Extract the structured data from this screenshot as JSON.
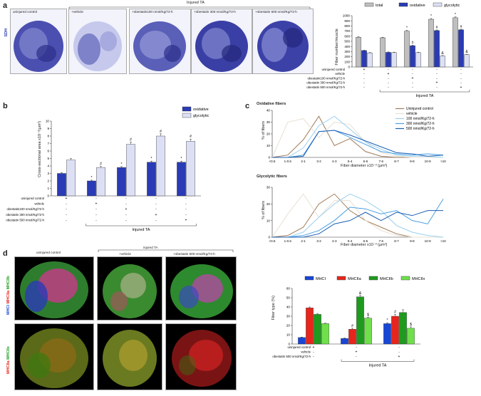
{
  "panel_a": {
    "letter": "a",
    "stain": "SDH",
    "group_label": "Injured TA",
    "images": [
      "uninjured control",
      "+vehicle",
      "+obestatin100 nmol/Kg/72-h",
      "+obestatin 300 nmol/Kg/72-h",
      "+obestatin 500 nmol/Kg/72-h"
    ]
  },
  "panel_b": {
    "letter": "b"
  },
  "panel_c": {
    "letter": "c"
  },
  "panel_d": {
    "letter": "d",
    "headers": [
      "uninjured control",
      "+vehicle",
      "+obestatin 500 nmol/Kg/72-h"
    ],
    "group_label": "injured TA",
    "row1_stains": [
      "MHCI",
      "MHCIIa",
      "MHCIIb"
    ],
    "row2_stains": [
      "MHCIIa",
      "MHCIIx"
    ]
  },
  "colors": {
    "blue": "#2a3bb5",
    "light": "#dde0f5",
    "grey": "#bfbfbf",
    "mhcI": "#1846d6",
    "mhcIIa": "#e8251c",
    "mhcIIb": "#1e9a1e",
    "mhcIIx": "#6fe04a"
  },
  "chart_data": [
    {
      "id": "a",
      "type": "bar",
      "ylabel": "Fiber number/muscle",
      "ylim": [
        0,
        1000
      ],
      "yticks": [
        "0",
        "100",
        "200",
        "300",
        "400",
        "500",
        "600",
        "700",
        "800",
        "900",
        "1000"
      ],
      "legend": [
        "total",
        "oxidative",
        "glycolytic"
      ],
      "series": [
        {
          "name": "total",
          "values": [
            580,
            570,
            700,
            930,
            960
          ],
          "errors": [
            10,
            10,
            15,
            15,
            15
          ]
        },
        {
          "name": "oxidative",
          "values": [
            320,
            285,
            415,
            710,
            725
          ],
          "errors": [
            8,
            8,
            10,
            12,
            12
          ]
        },
        {
          "name": "glycolytic",
          "values": [
            275,
            280,
            280,
            215,
            240
          ],
          "errors": [
            8,
            8,
            8,
            8,
            8
          ]
        }
      ],
      "marks": [
        [
          "",
          "",
          ""
        ],
        [
          "",
          "",
          ""
        ],
        [
          "*",
          "#",
          ""
        ],
        [
          "*",
          "#",
          "&"
        ],
        [
          "*",
          "#",
          "&"
        ]
      ],
      "condition_rows": [
        {
          "label": "uninjured control",
          "signs": [
            "+",
            "-",
            "-",
            "-",
            "-"
          ]
        },
        {
          "label": "vehicle",
          "signs": [
            "-",
            "+",
            "-",
            "-",
            "-"
          ]
        },
        {
          "label": "obestatin100 nmol/Kg/72-h",
          "signs": [
            "-",
            "-",
            "+",
            "-",
            "-"
          ]
        },
        {
          "label": "obestatin 300 nmol/Kg/72-h",
          "signs": [
            "-",
            "-",
            "-",
            "+",
            "-"
          ]
        },
        {
          "label": "obestatin 500 nmol/Kg/72-h",
          "signs": [
            "-",
            "-",
            "-",
            "-",
            "+"
          ]
        }
      ],
      "group_label": "Injured TA"
    },
    {
      "id": "b",
      "type": "bar",
      "ylabel": "Cross-sectional area x10⁻³(µm²)",
      "ylim": [
        0,
        10
      ],
      "yticks": [
        "0",
        "1",
        "2",
        "3",
        "4",
        "5",
        "6",
        "7",
        "8",
        "9",
        "10"
      ],
      "legend": [
        "oxidative",
        "glycolytic"
      ],
      "series": [
        {
          "name": "oxidative",
          "values": [
            3.0,
            2.0,
            3.8,
            4.5,
            4.5
          ],
          "errors": [
            0.12,
            0.1,
            0.12,
            0.15,
            0.15
          ]
        },
        {
          "name": "glycolytic",
          "values": [
            4.8,
            3.8,
            6.9,
            8.0,
            7.3
          ],
          "errors": [
            0.2,
            0.15,
            0.3,
            0.3,
            0.3
          ]
        }
      ],
      "marks": [
        [
          "",
          ""
        ],
        [
          "*",
          "#"
        ],
        [
          "*",
          "#"
        ],
        [
          "*",
          "#"
        ],
        [
          "*",
          "#"
        ]
      ],
      "condition_rows": [
        {
          "label": "uninjured control",
          "signs": [
            "+",
            "-",
            "-",
            "-",
            "-"
          ]
        },
        {
          "label": "vehicle",
          "signs": [
            "-",
            "+",
            "-",
            "-",
            "-"
          ]
        },
        {
          "label": "obestatin100 nmol/Kg/72-h",
          "signs": [
            "-",
            "-",
            "+",
            "-",
            "-"
          ]
        },
        {
          "label": "obestatin 300 nmol/Kg/72-h",
          "signs": [
            "-",
            "-",
            "-",
            "+",
            "-"
          ]
        },
        {
          "label": "obestatin 500 nmol/Kg/72-h",
          "signs": [
            "-",
            "-",
            "-",
            "-",
            "+"
          ]
        }
      ],
      "group_label": "Injured TA"
    },
    {
      "id": "c1",
      "type": "line",
      "title": "Oxidative fibers",
      "xlabel": "Fiber diameter x10⁻³ (µm²)",
      "ylabel": "% of fibers",
      "categories": [
        "<0.5",
        "1-0.5",
        "2-1",
        "3-2",
        "4-3",
        "5-4",
        "6-5",
        "7-6",
        "8-7",
        "9-8",
        "10-9",
        ">10"
      ],
      "ylim": [
        0,
        40
      ],
      "series": [
        {
          "name": "Uninjured control",
          "color": "#a07a55",
          "values": [
            0,
            2,
            15,
            35,
            10,
            16,
            5,
            1,
            0,
            0,
            0,
            0
          ]
        },
        {
          "name": "vehicle",
          "color": "#e8e0d2",
          "values": [
            0,
            30,
            33,
            17,
            30,
            28,
            13,
            4,
            1,
            0,
            0,
            0
          ]
        },
        {
          "name": "100 nmol/Kg/72-h",
          "color": "#9ad0ef",
          "values": [
            0,
            0,
            8,
            27,
            35,
            24,
            13,
            7,
            2,
            1,
            1,
            0
          ]
        },
        {
          "name": "300 nmol/Kg/72-h",
          "color": "#4a9fe0",
          "values": [
            0,
            0,
            2,
            22,
            23,
            17,
            11,
            5,
            3,
            2,
            3,
            2
          ]
        },
        {
          "name": "500 nmol/Kg/72-h",
          "color": "#1b5fb5",
          "values": [
            0,
            0,
            1,
            22,
            23,
            19,
            14,
            9,
            4,
            3,
            1,
            2
          ]
        }
      ]
    },
    {
      "id": "c2",
      "type": "line",
      "title": "Glycolytic fibers",
      "xlabel": "Fiber diameter x10⁻³ (µm²)",
      "ylabel": "% of fibers",
      "categories": [
        "<0.5",
        "1-0.5",
        "2-1",
        "3-2",
        "4-3",
        "5-4",
        "6-5",
        "7-6",
        "8-7",
        "9-8",
        "10-9",
        ">10"
      ],
      "ylim": [
        0,
        30
      ],
      "series": [
        {
          "name": "Uninjured control",
          "color": "#a07a55",
          "values": [
            0,
            1,
            6,
            20,
            26,
            16,
            10,
            6,
            2,
            0,
            0,
            0
          ]
        },
        {
          "name": "vehicle",
          "color": "#e8e0d2",
          "values": [
            0,
            14,
            26,
            12,
            22,
            22,
            10,
            4,
            1,
            0,
            0,
            0
          ]
        },
        {
          "name": "100 nmol/Kg/72-h",
          "color": "#9ad0ef",
          "values": [
            0,
            0,
            3,
            12,
            20,
            26,
            22,
            16,
            7,
            3,
            1,
            0
          ]
        },
        {
          "name": "300 nmol/Kg/72-h",
          "color": "#4a9fe0",
          "values": [
            0,
            0,
            1,
            4,
            10,
            18,
            17,
            14,
            16,
            10,
            8,
            23
          ]
        },
        {
          "name": "500 nmol/Kg/72-h",
          "color": "#1b5fb5",
          "values": [
            0,
            0,
            0,
            2,
            8,
            10,
            15,
            10,
            15,
            13,
            16,
            16
          ]
        }
      ]
    },
    {
      "id": "d",
      "type": "bar",
      "ylabel": "Fiber type (%)",
      "ylim": [
        0,
        60
      ],
      "yticks": [
        "0",
        "10",
        "20",
        "30",
        "40",
        "50",
        "60"
      ],
      "legend": [
        "MHCI",
        "MHCIIa",
        "MHCIIb",
        "MHCIIx"
      ],
      "series": [
        {
          "name": "MHCI",
          "values": [
            7,
            6,
            22
          ],
          "errors": [
            0.5,
            0.5,
            1
          ]
        },
        {
          "name": "MHCIIa",
          "values": [
            39,
            16,
            30
          ],
          "errors": [
            1,
            1,
            2
          ]
        },
        {
          "name": "MHCIIb",
          "values": [
            32,
            51,
            34
          ],
          "errors": [
            1,
            1.5,
            3
          ]
        },
        {
          "name": "MHCIIx",
          "values": [
            22,
            28,
            17
          ],
          "errors": [
            0.5,
            1,
            1.5
          ]
        }
      ],
      "marks": [
        [
          "",
          "",
          "",
          ""
        ],
        [
          "",
          "#",
          "&",
          "$"
        ],
        [
          "*",
          "#",
          "",
          "$"
        ]
      ],
      "condition_rows": [
        {
          "label": "uninjured control",
          "signs": [
            "+",
            "-",
            "-"
          ]
        },
        {
          "label": "vehicle",
          "signs": [
            "-",
            "+",
            "-"
          ]
        },
        {
          "label": "obestatin 500 nmol/Kg/72-h",
          "signs": [
            "-",
            "-",
            "+"
          ]
        }
      ],
      "group_label": "Injured TA"
    }
  ]
}
